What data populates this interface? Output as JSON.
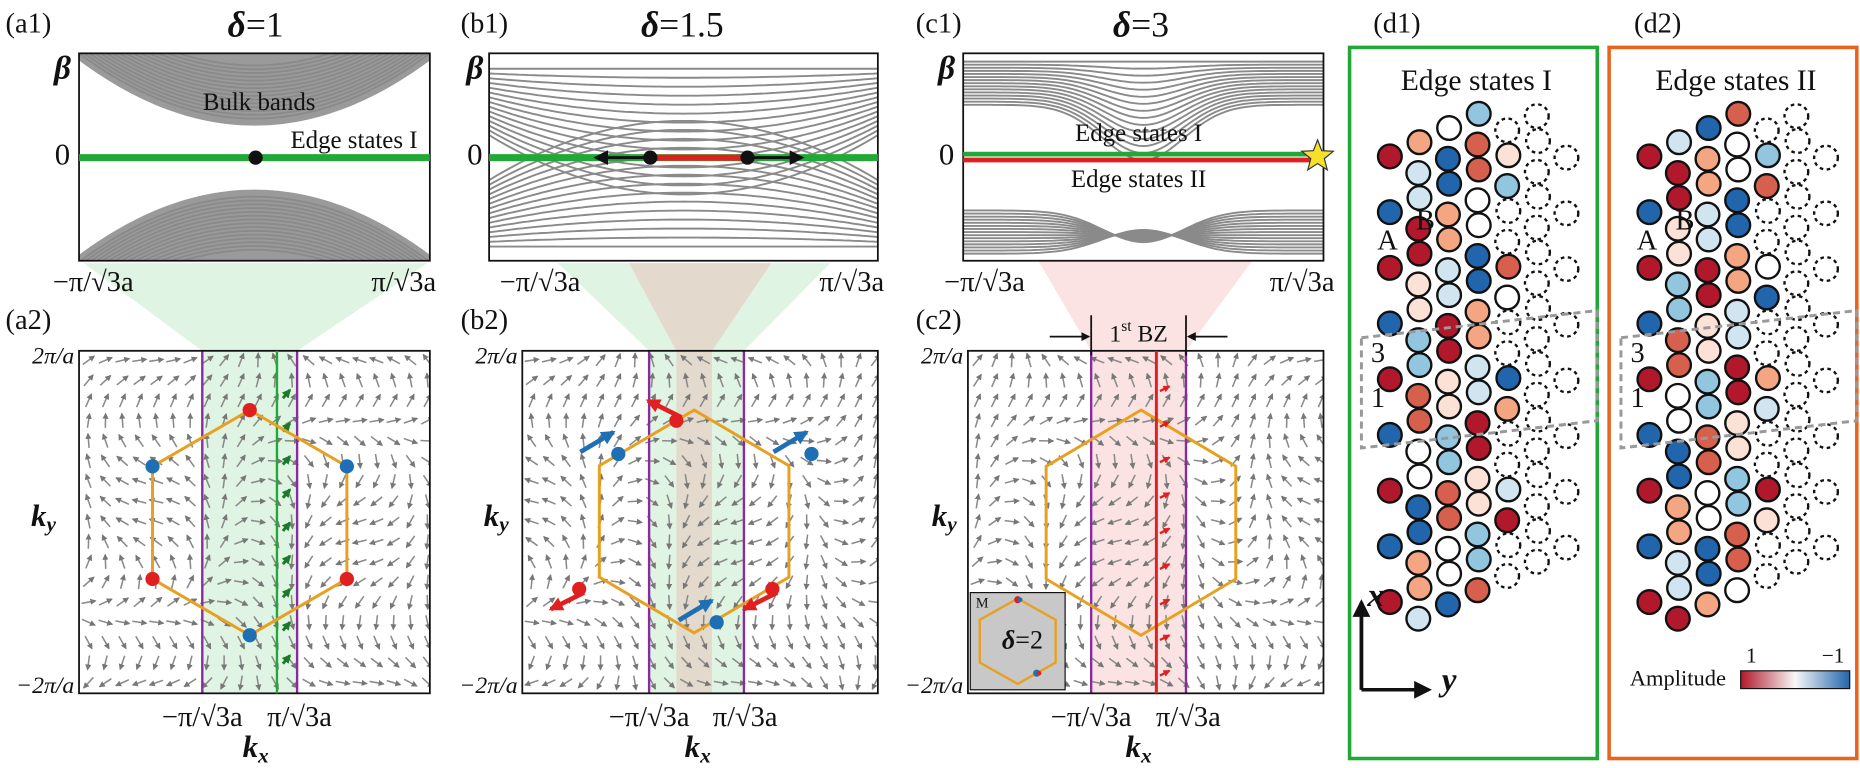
{
  "panels": {
    "a1": {
      "tag": "(a1)",
      "title": {
        "symbol": "δ",
        "value": "=1"
      },
      "y_label": "β",
      "y_tick": "0",
      "x_ticks": [
        "−π/√3a",
        "π/√3a"
      ],
      "annotations": [
        "Bulk bands",
        "Edge states I"
      ]
    },
    "a2": {
      "tag": "(a2)",
      "y_ticks": [
        "2π/a",
        "−2π/a"
      ],
      "x_ticks": [
        "−π/√3a",
        "π/√3a"
      ],
      "x_label": {
        "base": "k",
        "sub": "x"
      },
      "y_label": {
        "base": "k",
        "sub": "y"
      }
    },
    "b1": {
      "tag": "(b1)",
      "title": {
        "symbol": "δ",
        "value": "=1.5"
      },
      "y_label": "β",
      "y_tick": "0",
      "x_ticks": [
        "−π/√3a",
        "π/√3a"
      ]
    },
    "b2": {
      "tag": "(b2)",
      "y_ticks": [
        "2π/a",
        "−2π/a"
      ],
      "x_ticks": [
        "−π/√3a",
        "π/√3a"
      ],
      "x_label": {
        "base": "k",
        "sub": "x"
      },
      "y_label": {
        "base": "k",
        "sub": "y"
      }
    },
    "c1": {
      "tag": "(c1)",
      "title": {
        "symbol": "δ",
        "value": "=3"
      },
      "y_label": "β",
      "y_tick": "0",
      "x_ticks": [
        "−π/√3a",
        "π/√3a"
      ],
      "annotations": [
        "Edge states I",
        "Edge states II"
      ]
    },
    "c2": {
      "tag": "(c2)",
      "y_ticks": [
        "2π/a",
        "−2π/a"
      ],
      "x_ticks": [
        "−π/√3a",
        "π/√3a"
      ],
      "x_label": {
        "base": "k",
        "sub": "x"
      },
      "y_label": {
        "base": "k",
        "sub": "y"
      },
      "bz_label": {
        "base": "1",
        "sup": "st",
        "rest": " BZ"
      },
      "inset": {
        "tag": "M",
        "symbol": "δ",
        "value": "=2"
      }
    },
    "d1": {
      "tag": "(d1)",
      "title": "Edge states I",
      "site_labels": [
        "A",
        "B",
        "3",
        "1"
      ],
      "axes": [
        "x",
        "y"
      ]
    },
    "d2": {
      "tag": "(d2)",
      "title": "Edge states II",
      "site_labels": [
        "A",
        "B",
        "3",
        "1"
      ],
      "legend": {
        "title": "Amplitude",
        "left": "1",
        "right": "−1"
      }
    }
  }
}
